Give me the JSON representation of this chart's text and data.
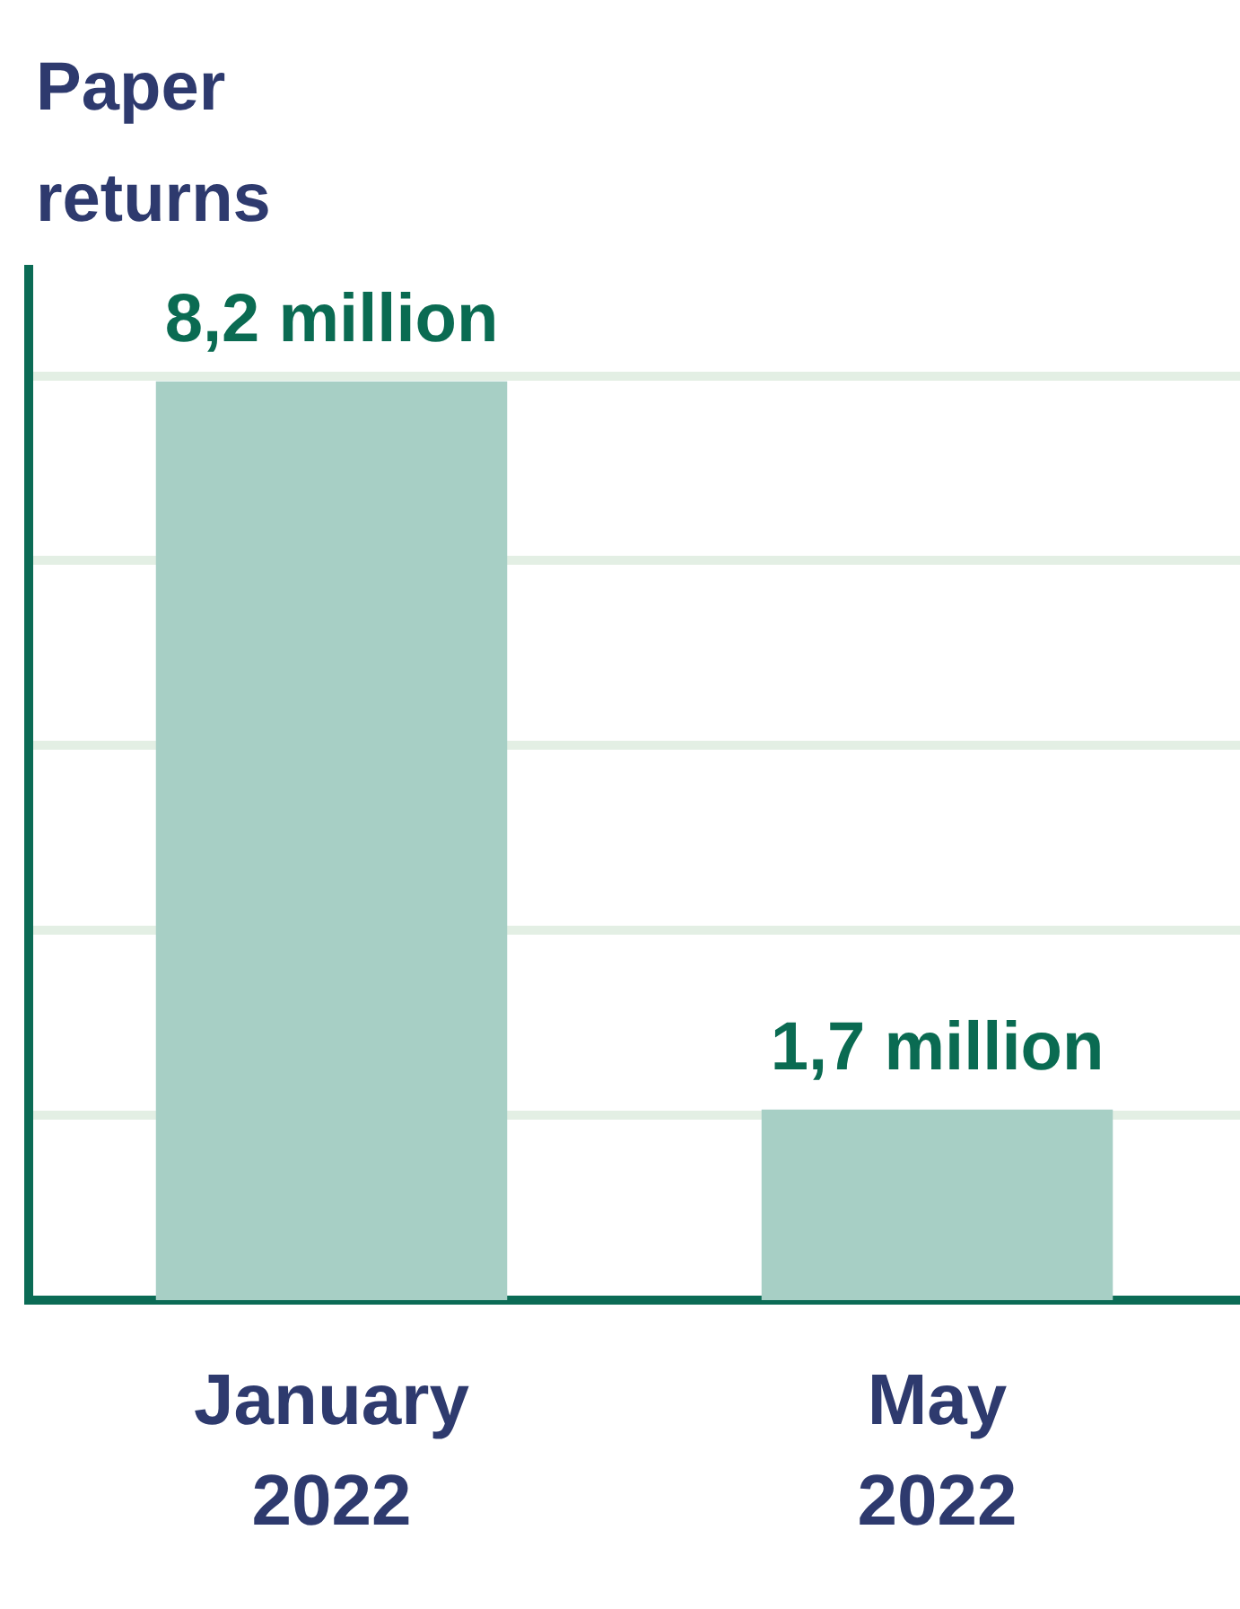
{
  "chart_data": {
    "type": "bar",
    "title": "Paper returns",
    "categories": [
      "January 2022",
      "May 2022"
    ],
    "values": [
      8.2,
      1.7
    ],
    "color": "#a7cfc5",
    "value_labels": [
      "8,2 million",
      "1,7 million"
    ],
    "ylim": [
      0,
      9.2
    ],
    "yticks": [
      {
        "value": 1.65,
        "label": null
      },
      {
        "value": 3.3,
        "label": null
      },
      {
        "value": 4.95,
        "label": null
      },
      {
        "value": 6.6,
        "label": null
      },
      {
        "value": 8.25,
        "label": null
      }
    ],
    "grid": "y",
    "tick_labels": "x"
  }
}
